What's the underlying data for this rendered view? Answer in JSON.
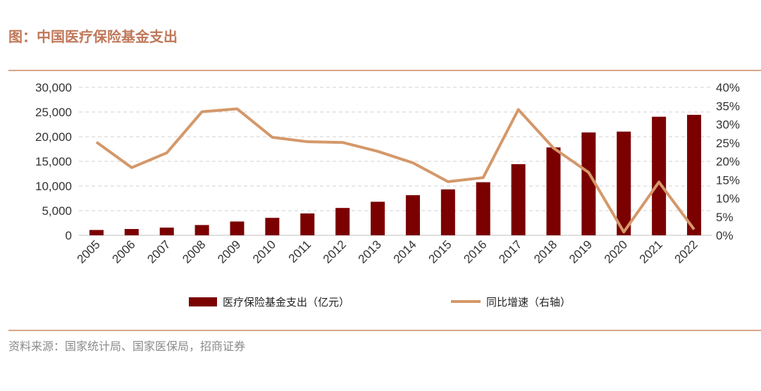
{
  "header": {
    "title": "图：中国医疗保险基金支出"
  },
  "footer": {
    "source": "资料来源：国家统计局、国家医保局，招商证券"
  },
  "chart_data": {
    "type": "bar+line",
    "title": "图：中国医疗保险基金支出",
    "categories": [
      "2005",
      "2006",
      "2007",
      "2008",
      "2009",
      "2010",
      "2011",
      "2012",
      "2013",
      "2014",
      "2015",
      "2016",
      "2017",
      "2018",
      "2019",
      "2020",
      "2021",
      "2022"
    ],
    "series": [
      {
        "name": "医疗保险基金支出（亿元）",
        "type": "bar",
        "axis": "left",
        "color": "#7b0000",
        "values": [
          1079,
          1277,
          1562,
          2084,
          2797,
          3538,
          4431,
          5544,
          6801,
          8134,
          9313,
          10767,
          14422,
          17822,
          20854,
          21032,
          24043,
          24431
        ]
      },
      {
        "name": "同比增速（右轴）",
        "type": "line",
        "axis": "right",
        "color": "#d4986a",
        "values": [
          25.2,
          18.3,
          22.3,
          33.4,
          34.2,
          26.5,
          25.3,
          25.1,
          22.7,
          19.6,
          14.5,
          15.6,
          34.0,
          23.6,
          17.0,
          0.9,
          14.4,
          1.6
        ]
      }
    ],
    "left_axis": {
      "min": 0,
      "max": 30000,
      "ticks": [
        "0",
        "5,000",
        "10,000",
        "15,000",
        "20,000",
        "25,000",
        "30,000"
      ]
    },
    "right_axis": {
      "min": 0,
      "max": 40,
      "ticks": [
        "0%",
        "5%",
        "10%",
        "15%",
        "20%",
        "25%",
        "30%",
        "35%",
        "40%"
      ]
    },
    "legend": [
      "医疗保险基金支出（亿元）",
      "同比增速（右轴）"
    ],
    "legend_position": "bottom",
    "grid": true
  }
}
